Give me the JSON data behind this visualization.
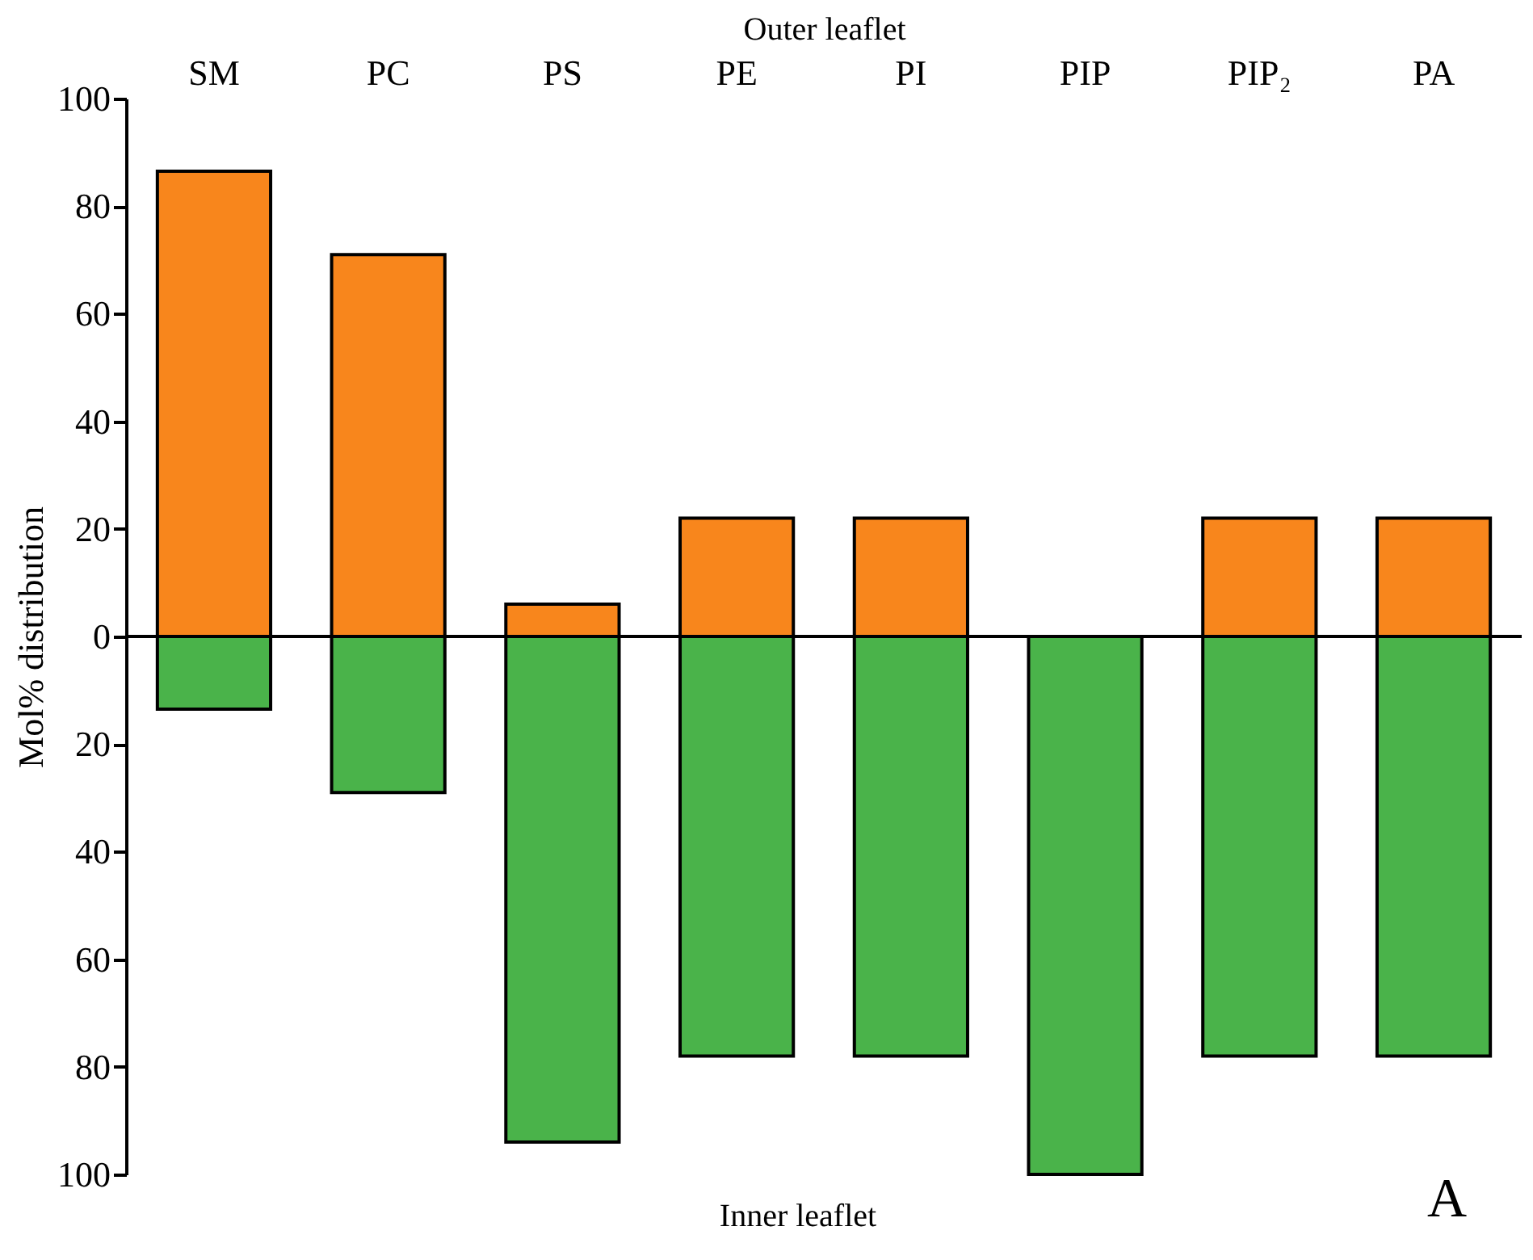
{
  "chart_data": {
    "type": "bar",
    "xlabel": "Outer leaflet",
    "ylabel": "Mol% distribution",
    "categories": [
      "SM",
      "PC",
      "PS",
      "PE",
      "PI",
      "PIP",
      "PIP₂",
      "PA"
    ],
    "series": [
      {
        "color": "#f8861c",
        "values": [
          86.5,
          71,
          6,
          22,
          22,
          null,
          22,
          22
        ]
      },
      {
        "color": "#4ab34a",
        "values": [
          -13.5,
          -29,
          -94,
          -78,
          -78,
          -100,
          -78,
          -78
        ]
      }
    ],
    "stacked": true,
    "ylim": [
      -100,
      100
    ],
    "yticks": [
      {
        "value": -100,
        "label": "100"
      },
      {
        "value": -80,
        "label": "80"
      },
      {
        "value": -60,
        "label": "60"
      },
      {
        "value": -40,
        "label": "40"
      },
      {
        "value": -20,
        "label": "20"
      },
      0,
      20,
      40,
      60,
      80,
      100
    ],
    "ref_lines": [
      {
        "axis": "y",
        "value": 0,
        "color": "#000000"
      }
    ],
    "annotations": [
      "Inner leaflet",
      "A"
    ],
    "grid": false,
    "legend": false
  }
}
